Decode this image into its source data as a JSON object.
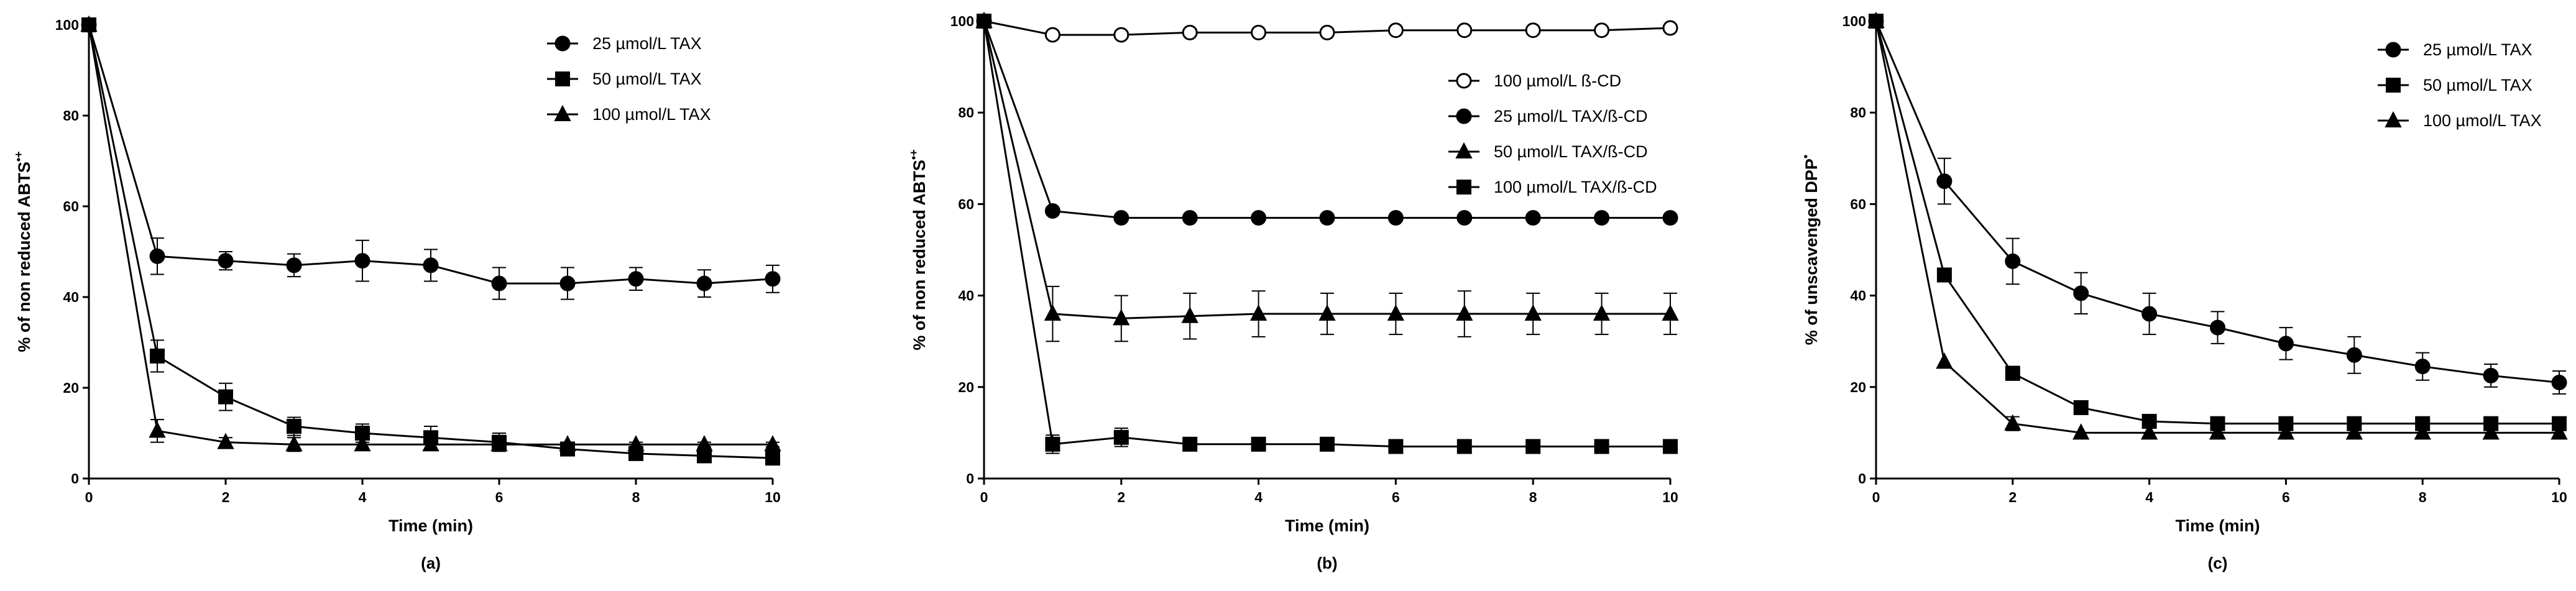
{
  "chart_data": [
    {
      "type": "line",
      "panel_label": "(a)",
      "xlabel": "Time (min)",
      "ylabel": "% of non reduced ABTS",
      "ylabel_sup": "•+",
      "xlim": [
        0,
        10
      ],
      "ylim": [
        0,
        100
      ],
      "x_ticks": [
        0,
        2,
        4,
        6,
        8,
        10
      ],
      "y_ticks": [
        0,
        20,
        40,
        60,
        80,
        100
      ],
      "legend_position": "top-right",
      "x": [
        0,
        1,
        2,
        3,
        4,
        5,
        6,
        7,
        8,
        9,
        10
      ],
      "series": [
        {
          "name": "25 µmol/L TAX",
          "marker": "circle-filled",
          "values": [
            100,
            49,
            48,
            47,
            48,
            47,
            43,
            43,
            44,
            43,
            44
          ],
          "errors": [
            0,
            4,
            2,
            2.5,
            4.5,
            3.5,
            3.5,
            3.5,
            2.5,
            3,
            3
          ]
        },
        {
          "name": "50 µmol/L TAX",
          "marker": "square-filled",
          "values": [
            100,
            27,
            18,
            11.5,
            10,
            9,
            8,
            6.5,
            5.5,
            5,
            4.5
          ],
          "errors": [
            0,
            3.5,
            3,
            2,
            2,
            2.5,
            2,
            1,
            1,
            1,
            1
          ]
        },
        {
          "name": "100 µmol/L TAX",
          "marker": "triangle-filled",
          "values": [
            100,
            10.5,
            8,
            7.5,
            7.5,
            7.5,
            7.5,
            7.5,
            7.5,
            7.5,
            7.5
          ],
          "errors": [
            0,
            2.5,
            1,
            1.5,
            1,
            1,
            1,
            0.5,
            0.5,
            0.5,
            0.5
          ]
        }
      ]
    },
    {
      "type": "line",
      "panel_label": "(b)",
      "xlabel": "Time (min)",
      "ylabel": "% of non reduced ABTS",
      "ylabel_sup": "•+",
      "xlim": [
        0,
        10
      ],
      "ylim": [
        0,
        100
      ],
      "x_ticks": [
        0,
        2,
        4,
        6,
        8,
        10
      ],
      "y_ticks": [
        0,
        20,
        40,
        60,
        80,
        100
      ],
      "legend_position": "right",
      "x": [
        0,
        1,
        2,
        3,
        4,
        5,
        6,
        7,
        8,
        9,
        10
      ],
      "series": [
        {
          "name": "100 µmol/L ß-CD",
          "marker": "circle-open",
          "values": [
            100,
            97,
            97,
            97.5,
            97.5,
            97.5,
            98,
            98,
            98,
            98,
            98.5
          ],
          "errors": [
            0,
            0,
            0,
            0,
            0,
            0,
            0,
            0,
            0,
            0,
            0
          ]
        },
        {
          "name": "25 µmol/L TAX/ß-CD",
          "marker": "circle-filled",
          "values": [
            100,
            58.5,
            57,
            57,
            57,
            57,
            57,
            57,
            57,
            57,
            57
          ],
          "errors": [
            0,
            0,
            0,
            0,
            0,
            0,
            0,
            0,
            0,
            0,
            0
          ]
        },
        {
          "name": "50 µmol/L TAX/ß-CD",
          "marker": "triangle-filled",
          "values": [
            100,
            36,
            35,
            35.5,
            36,
            36,
            36,
            36,
            36,
            36,
            36
          ],
          "errors": [
            0,
            6,
            5,
            5,
            5,
            4.5,
            4.5,
            5,
            4.5,
            4.5,
            4.5
          ]
        },
        {
          "name": "100 µmol/L TAX/ß-CD",
          "marker": "square-filled",
          "values": [
            100,
            7.5,
            9,
            7.5,
            7.5,
            7.5,
            7,
            7,
            7,
            7,
            7
          ],
          "errors": [
            0,
            2,
            2,
            0,
            0,
            0,
            0,
            0,
            0,
            0,
            0
          ]
        }
      ]
    },
    {
      "type": "line",
      "panel_label": "(c)",
      "xlabel": "Time (min)",
      "ylabel": "% of unscavenged DPP",
      "ylabel_sup": "•",
      "xlim": [
        0,
        10
      ],
      "ylim": [
        0,
        100
      ],
      "x_ticks": [
        0,
        2,
        4,
        6,
        8,
        10
      ],
      "y_ticks": [
        0,
        20,
        40,
        60,
        80,
        100
      ],
      "legend_position": "top-right",
      "x": [
        0,
        1,
        2,
        3,
        4,
        5,
        6,
        7,
        8,
        9,
        10
      ],
      "series": [
        {
          "name": "25 µmol/L TAX",
          "marker": "circle-filled",
          "values": [
            100,
            65,
            47.5,
            40.5,
            36,
            33,
            29.5,
            27,
            24.5,
            22.5,
            21
          ],
          "errors": [
            0,
            5,
            5,
            4.5,
            4.5,
            3.5,
            3.5,
            4,
            3,
            2.5,
            2.5
          ]
        },
        {
          "name": "50 µmol/L TAX",
          "marker": "square-filled",
          "values": [
            100,
            44.5,
            23,
            15.5,
            12.5,
            12,
            12,
            12,
            12,
            12,
            12
          ],
          "errors": [
            0,
            0,
            1.5,
            0,
            0,
            0,
            0,
            0,
            0,
            0,
            0
          ]
        },
        {
          "name": "100 µmol/L TAX",
          "marker": "triangle-filled",
          "values": [
            100,
            25.5,
            12,
            10,
            10,
            10,
            10,
            10,
            10,
            10,
            10
          ],
          "errors": [
            0,
            0,
            1.5,
            0,
            0,
            0,
            0,
            0,
            0,
            0,
            0
          ]
        }
      ]
    }
  ]
}
